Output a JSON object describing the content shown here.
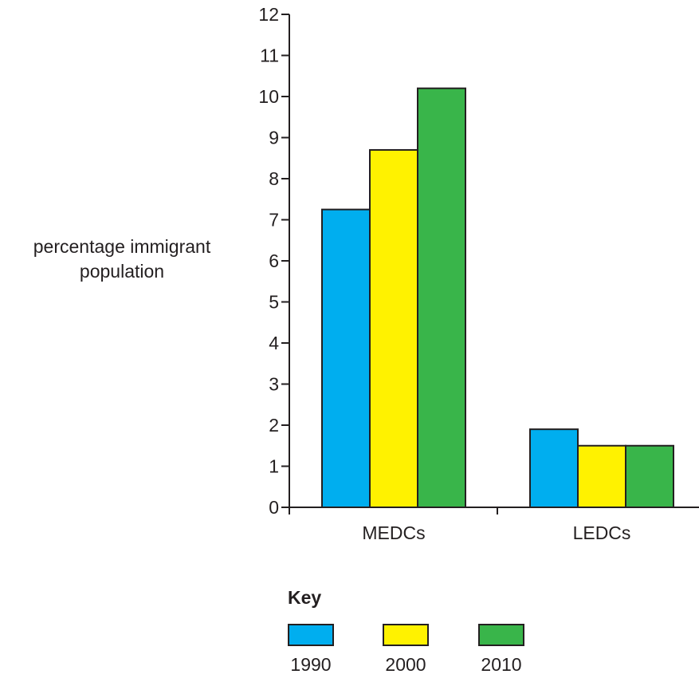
{
  "chart_data": {
    "type": "bar",
    "categories": [
      "MEDCs",
      "LEDCs"
    ],
    "series": [
      {
        "name": "1990",
        "values": [
          7.25,
          1.9
        ],
        "color": "#00aeef"
      },
      {
        "name": "2000",
        "values": [
          8.7,
          1.5
        ],
        "color": "#fff200"
      },
      {
        "name": "2010",
        "values": [
          10.2,
          1.5
        ],
        "color": "#39b54a"
      }
    ],
    "ylabel": [
      "percentage immigrant",
      "population"
    ],
    "xlabel": "",
    "ylim": [
      0,
      12
    ],
    "yticks": [
      0,
      1,
      2,
      3,
      4,
      5,
      6,
      7,
      8,
      9,
      10,
      11,
      12
    ],
    "grid": false,
    "legend": {
      "title": "Key",
      "placement": "bottom",
      "entries": [
        "1990",
        "2000",
        "2010"
      ]
    }
  }
}
